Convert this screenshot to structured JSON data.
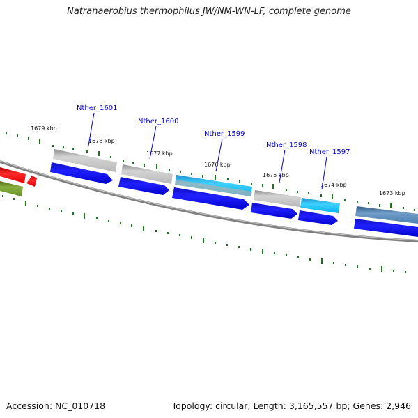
{
  "title": "Natranaerobius thermophilus JW/NM-WN-LF, complete genome",
  "footer": {
    "accession": "Accession: NC_010718",
    "stats": "Topology: circular; Length: 3,165,557 bp; Genes: 2,946"
  },
  "kbp_labels": [
    "1679 kbp",
    "1678 kbp",
    "1677 kbp",
    "1676 kbp",
    "1675 kbp",
    "1674 kbp",
    "1673 kbp"
  ],
  "gene_labels": [
    "Nther_1601",
    "Nther_1600",
    "Nther_1599",
    "Nther_1598",
    "Nther_1597"
  ],
  "colors": {
    "backbone": "#777777",
    "tick": "#1a7a1a",
    "gene_label": "#0000cc",
    "cds": "#0000ee",
    "gray_feature": "#b4b4b4",
    "cyan_feature": "#00bfff",
    "steel_feature": "#4f80b0",
    "red_feature": "#ee0000",
    "olive_feature": "#6a8f22"
  }
}
